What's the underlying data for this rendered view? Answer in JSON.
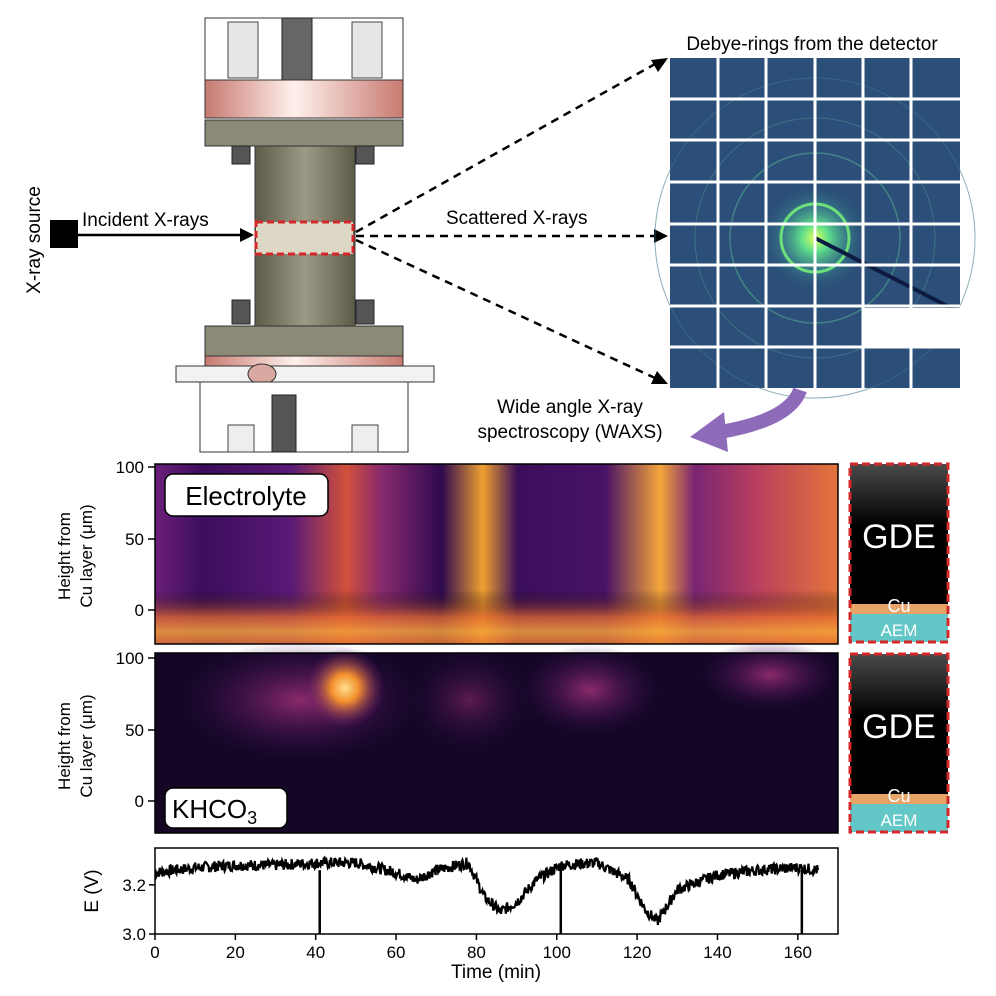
{
  "labels": {
    "xray_source": "X-ray source",
    "incident": "Incident X-rays",
    "scattered": "Scattered X-rays",
    "debye": "Debye-rings from the detector",
    "waxs_line1": "Wide angle X-ray",
    "waxs_line2": "spectroscopy (WAXS)"
  },
  "panels": {
    "electrolyte": {
      "label": "Electrolyte",
      "ylabel_line1": "Height from",
      "ylabel_line2": "Cu layer (μm)",
      "yticks": [
        "100",
        "50",
        "0"
      ]
    },
    "khco3": {
      "label_main": "KHCO",
      "label_sub": "3",
      "ylabel_line1": "Height from",
      "ylabel_line2": "Cu layer (μm)",
      "yticks": [
        "100",
        "50",
        "0"
      ]
    }
  },
  "legend_box": {
    "gde": "GDE",
    "cu": "Cu",
    "aem": "AEM"
  },
  "colors": {
    "accent_red": "#d62728",
    "arrow_purple": "#8e6bb8",
    "cu_layer": "#e8a466",
    "aem_layer": "#63c7c7",
    "detector_bg": "#2b4f78"
  },
  "chart_data": {
    "type": "line",
    "xlabel": "Time (min)",
    "ylabel": "E (V)",
    "xlim": [
      0,
      170
    ],
    "ylim": [
      3.0,
      3.35
    ],
    "xticks": [
      "0",
      "20",
      "40",
      "60",
      "80",
      "100",
      "120",
      "140",
      "160"
    ],
    "yticks": [
      "3.0",
      "3.2"
    ],
    "x": [
      0,
      10,
      20,
      30,
      41,
      50,
      60,
      65,
      70,
      78,
      82,
      86,
      90,
      95,
      101,
      110,
      118,
      122,
      125,
      130,
      140,
      150,
      160,
      165
    ],
    "values": [
      3.25,
      3.27,
      3.28,
      3.28,
      3.29,
      3.29,
      3.25,
      3.22,
      3.26,
      3.29,
      3.15,
      3.09,
      3.13,
      3.22,
      3.28,
      3.29,
      3.22,
      3.1,
      3.05,
      3.18,
      3.24,
      3.26,
      3.27,
      3.26
    ],
    "spikes": [
      41,
      101,
      161
    ],
    "spike_floor": 3.0
  }
}
